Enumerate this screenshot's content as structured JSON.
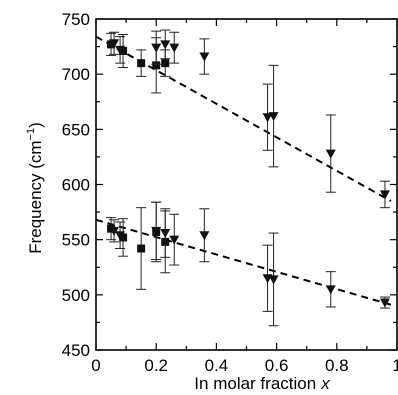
{
  "chart_data": {
    "type": "scatter",
    "xlabel": "In molar fraction",
    "xlabel_var": "x",
    "ylabel": "Frequency (cm",
    "ylabel_sup": "−1",
    "ylabel_close": ")",
    "xlim": [
      0,
      1
    ],
    "ylim": [
      450,
      750
    ],
    "x_ticks": [
      0,
      0.2,
      0.4,
      0.6,
      0.8,
      1
    ],
    "x_tick_labels": [
      "0",
      "0.2",
      "0.4",
      "0.6",
      "0.8",
      "1"
    ],
    "y_ticks": [
      450,
      500,
      550,
      600,
      650,
      700,
      750
    ],
    "y_tick_labels": [
      "450",
      "500",
      "550",
      "600",
      "650",
      "700",
      "750"
    ],
    "series": [
      {
        "marker": "square",
        "points": [
          {
            "x": 0.05,
            "y": 727,
            "err": 10
          },
          {
            "x": 0.09,
            "y": 721,
            "err": 15
          },
          {
            "x": 0.15,
            "y": 710,
            "err": 12
          },
          {
            "x": 0.2,
            "y": 708,
            "err": 25
          },
          {
            "x": 0.23,
            "y": 710,
            "err": 12
          },
          {
            "x": 0.05,
            "y": 560,
            "err": 10
          },
          {
            "x": 0.09,
            "y": 552,
            "err": 17
          },
          {
            "x": 0.15,
            "y": 542,
            "err": 37
          },
          {
            "x": 0.2,
            "y": 557,
            "err": 27
          },
          {
            "x": 0.23,
            "y": 548,
            "err": 28
          }
        ]
      },
      {
        "marker": "triangle-down",
        "points": [
          {
            "x": 0.06,
            "y": 728,
            "err": 10
          },
          {
            "x": 0.08,
            "y": 722,
            "err": 12
          },
          {
            "x": 0.2,
            "y": 724,
            "err": 15
          },
          {
            "x": 0.23,
            "y": 727,
            "err": 13
          },
          {
            "x": 0.26,
            "y": 724,
            "err": 14
          },
          {
            "x": 0.36,
            "y": 716,
            "err": 16
          },
          {
            "x": 0.57,
            "y": 661,
            "err": 30
          },
          {
            "x": 0.59,
            "y": 662,
            "err": 46
          },
          {
            "x": 0.78,
            "y": 628,
            "err": 35
          },
          {
            "x": 0.96,
            "y": 591,
            "err": 12
          },
          {
            "x": 0.06,
            "y": 558,
            "err": 10
          },
          {
            "x": 0.08,
            "y": 554,
            "err": 12
          },
          {
            "x": 0.2,
            "y": 558,
            "err": 26
          },
          {
            "x": 0.23,
            "y": 556,
            "err": 22
          },
          {
            "x": 0.26,
            "y": 550,
            "err": 23
          },
          {
            "x": 0.36,
            "y": 554,
            "err": 24
          },
          {
            "x": 0.57,
            "y": 515,
            "err": 30
          },
          {
            "x": 0.59,
            "y": 514,
            "err": 42
          },
          {
            "x": 0.78,
            "y": 505,
            "err": 16
          },
          {
            "x": 0.96,
            "y": 493,
            "err": 5
          }
        ]
      }
    ],
    "fit_lines": [
      {
        "x": [
          0.0,
          0.98
        ],
        "y": [
          734,
          585
        ]
      },
      {
        "x": [
          0.0,
          0.98
        ],
        "y": [
          568,
          491
        ]
      }
    ]
  }
}
